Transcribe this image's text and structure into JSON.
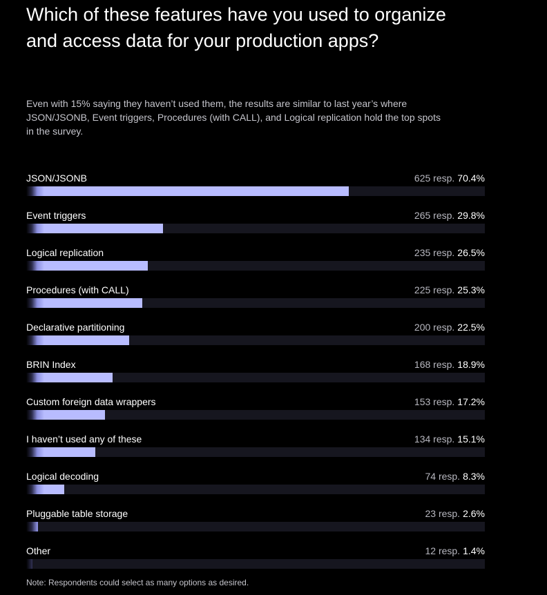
{
  "title": "Which of these features have you used to organize and access data for your production apps?",
  "subtitle": "Even with 15% saying they haven’t used them, the results are similar to last year’s where JSON/JSONB, Event triggers, Procedures (with CALL), and Logical replication hold the top spots in the survey.",
  "note": "Note: Respondents could select as many options as desired.",
  "colors": {
    "background": "#000000",
    "bar_fill": "#b8bcff",
    "bar_track": "#16161f",
    "text": "#ffffff",
    "muted_text": "#b8b8c0"
  },
  "chart_data": {
    "type": "bar",
    "orientation": "horizontal",
    "xlim": [
      0,
      100
    ],
    "categories": [
      "JSON/JSONB",
      "Event triggers",
      "Logical replication",
      "Procedures (with CALL)",
      "Declarative partitioning",
      "BRIN Index",
      "Custom foreign data wrappers",
      "I haven’t used any of these",
      "Logical decoding",
      "Pluggable table storage",
      "Other"
    ],
    "values": [
      70.4,
      29.8,
      26.5,
      25.3,
      22.5,
      18.9,
      17.2,
      15.1,
      8.3,
      2.6,
      1.4
    ],
    "responses": [
      625,
      265,
      235,
      225,
      200,
      168,
      153,
      134,
      74,
      23,
      12
    ],
    "value_labels": [
      "70.4%",
      "29.8%",
      "26.5%",
      "25.3%",
      "22.5%",
      "18.9%",
      "17.2%",
      "15.1%",
      "8.3%",
      "2.6%",
      "1.4%"
    ],
    "response_labels": [
      "625 resp.",
      "265 resp.",
      "235 resp.",
      "225 resp.",
      "200 resp.",
      "168 resp.",
      "153 resp.",
      "134 resp.",
      "74 resp.",
      "23 resp.",
      "12 resp."
    ]
  }
}
